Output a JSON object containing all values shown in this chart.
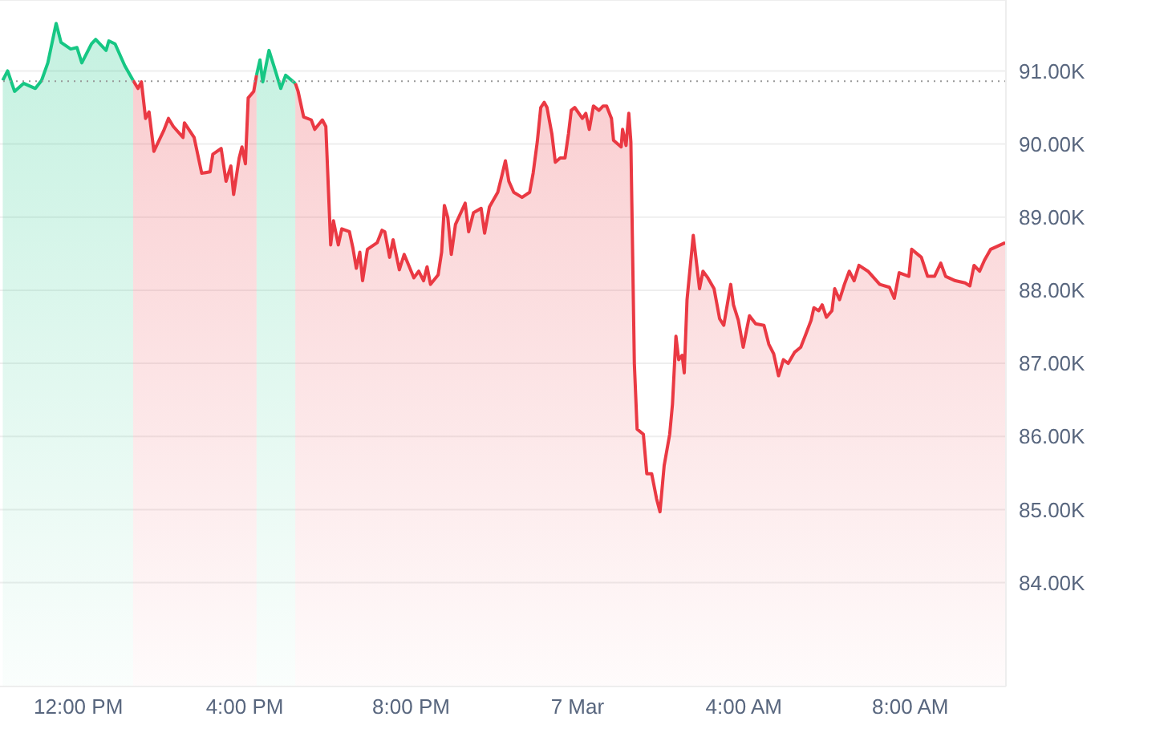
{
  "chart_data": {
    "type": "area",
    "x": [
      "--03-06T10:11",
      "--03-06T10:18",
      "--03-06T10:28",
      "--03-06T10:41",
      "--03-06T10:58",
      "--03-06T11:07",
      "--03-06T11:16",
      "--03-06T11:28",
      "--03-06T11:35",
      "--03-06T11:49",
      "--03-06T11:58",
      "--03-06T12:05",
      "--03-06T12:19",
      "--03-06T12:25",
      "--03-06T12:40",
      "--03-06T12:44",
      "--03-06T12:53",
      "--03-06T13:07",
      "--03-06T13:19",
      "--03-06T13:26",
      "--03-06T13:31",
      "--03-06T13:37",
      "--03-06T13:42",
      "--03-06T13:49",
      "--03-06T14:03",
      "--03-06T14:10",
      "--03-06T14:17",
      "--03-06T14:31",
      "--03-06T14:33",
      "--03-06T14:47",
      "--03-06T14:58",
      "--03-06T15:10",
      "--03-06T15:14",
      "--03-06T15:26",
      "--03-06T15:33",
      "--03-06T15:40",
      "--03-06T15:44",
      "--03-06T15:52",
      "--03-06T15:56",
      "--03-06T16:01",
      "--03-06T16:05",
      "--03-06T16:13",
      "--03-06T16:17",
      "--03-06T16:22",
      "--03-06T16:26",
      "--03-06T16:35",
      "--03-06T16:43",
      "--03-06T16:52",
      "--03-06T16:59",
      "--03-06T17:13",
      "--03-06T17:17",
      "--03-06T17:25",
      "--03-06T17:36",
      "--03-06T17:41",
      "--03-06T17:52",
      "--03-06T17:57",
      "--03-06T18:04",
      "--03-06T18:08",
      "--03-06T18:15",
      "--03-06T18:20",
      "--03-06T18:31",
      "--03-06T18:36",
      "--03-06T18:41",
      "--03-06T18:46",
      "--03-06T18:50",
      "--03-06T18:57",
      "--03-06T19:11",
      "--03-06T19:18",
      "--03-06T19:22",
      "--03-06T19:29",
      "--03-06T19:34",
      "--03-06T19:43",
      "--03-06T19:50",
      "--03-06T20:04",
      "--03-06T20:11",
      "--03-06T20:18",
      "--03-06T20:23",
      "--03-06T20:28",
      "--03-06T20:39",
      "--03-06T20:44",
      "--03-06T20:48",
      "--03-06T20:53",
      "--03-06T20:58",
      "--03-06T21:04",
      "--03-06T21:18",
      "--03-06T21:23",
      "--03-06T21:30",
      "--03-06T21:41",
      "--03-06T21:46",
      "--03-06T21:53",
      "--03-06T22:05",
      "--03-06T22:11",
      "--03-06T22:16",
      "--03-06T22:21",
      "--03-06T22:28",
      "--03-06T22:40",
      "--03-06T22:51",
      "--03-06T22:56",
      "--03-06T23:02",
      "--03-06T23:07",
      "--03-06T23:12",
      "--03-06T23:16",
      "--03-06T23:23",
      "--03-06T23:28",
      "--03-06T23:35",
      "--03-06T23:42",
      "--03-06T23:47",
      "--03-06T23:51",
      "--03-06T23:56",
      "--03-07T00:07",
      "--03-07T00:12",
      "--03-07T00:17",
      "--03-07T00:23",
      "--03-07T00:31",
      "--03-07T00:37",
      "--03-07T00:42",
      "--03-07T00:49",
      "--03-07T00:52",
      "--03-07T01:03",
      "--03-07T01:05",
      "--03-07T01:10",
      "--03-07T01:14",
      "--03-07T01:17",
      "--03-07T01:22",
      "--03-07T01:26",
      "--03-07T01:35",
      "--03-07T01:40",
      "--03-07T01:47",
      "--03-07T01:54",
      "--03-07T01:59",
      "--03-07T02:05",
      "--03-07T02:13",
      "--03-07T02:17",
      "--03-07T02:22",
      "--03-07T02:26",
      "--03-07T02:31",
      "--03-07T02:34",
      "--03-07T02:38",
      "--03-07T02:47",
      "--03-07T02:56",
      "--03-07T03:01",
      "--03-07T03:08",
      "--03-07T03:17",
      "--03-07T03:25",
      "--03-07T03:31",
      "--03-07T03:41",
      "--03-07T03:45",
      "--03-07T03:52",
      "--03-07T03:59",
      "--03-07T04:08",
      "--03-07T04:17",
      "--03-07T04:29",
      "--03-07T04:36",
      "--03-07T04:43",
      "--03-07T04:50",
      "--03-07T04:57",
      "--03-07T05:04",
      "--03-07T05:13",
      "--03-07T05:22",
      "--03-07T05:29",
      "--03-07T05:37",
      "--03-07T05:41",
      "--03-07T05:48",
      "--03-07T05:53",
      "--03-07T05:59",
      "--03-07T06:07",
      "--03-07T06:11",
      "--03-07T06:18",
      "--03-07T06:25",
      "--03-07T06:32",
      "--03-07T06:39",
      "--03-07T06:46",
      "--03-07T06:59",
      "--03-07T07:16",
      "--03-07T07:30",
      "--03-07T07:37",
      "--03-07T07:44",
      "--03-07T07:58",
      "--03-07T08:02",
      "--03-07T08:16",
      "--03-07T08:25",
      "--03-07T08:35",
      "--03-07T08:44",
      "--03-07T08:51",
      "--03-07T09:05",
      "--03-07T09:19",
      "--03-07T09:26",
      "--03-07T09:32",
      "--03-07T09:40",
      "--03-07T09:47",
      "--03-07T09:56",
      "--03-07T10:17"
    ],
    "series": [
      {
        "color": "#16c784",
        "values": [
          90870,
          91000,
          90720,
          90830,
          90760,
          90870,
          91110,
          91650,
          91390,
          91300,
          91320,
          91110,
          91370,
          91430,
          91280,
          91410,
          91370,
          91070,
          90870,
          null,
          null,
          null,
          null,
          null,
          null,
          null,
          null,
          null,
          null,
          null,
          null,
          null,
          null,
          null,
          null,
          null,
          null,
          null,
          null,
          null,
          null,
          null,
          90940,
          91150,
          90850,
          91280,
          91040,
          90760,
          90940,
          90830,
          null,
          null,
          null,
          null,
          null,
          null,
          null,
          null,
          null,
          null,
          null,
          null,
          null,
          null,
          null,
          null,
          null,
          null,
          null,
          null,
          null,
          null,
          null,
          null,
          null,
          null,
          null,
          null,
          null,
          null,
          null,
          null,
          null,
          null,
          null,
          null,
          null,
          null,
          null,
          null,
          null,
          null,
          null,
          null,
          null,
          null,
          null,
          null,
          null,
          null,
          null,
          null,
          null,
          null,
          null,
          null,
          null,
          null,
          null,
          null,
          null,
          null,
          null,
          null,
          null,
          null,
          null,
          null,
          null,
          null,
          null,
          null,
          null,
          null,
          null,
          null,
          null,
          null,
          null,
          null,
          null,
          null,
          null,
          null,
          null,
          null,
          null,
          null,
          null,
          null,
          null,
          null,
          null,
          null,
          null,
          null,
          null,
          null,
          null,
          null,
          null,
          null,
          null,
          null,
          null,
          null,
          null,
          null,
          null,
          null,
          null,
          null,
          null,
          null,
          null,
          null,
          null,
          null,
          null,
          null,
          null,
          null,
          null,
          null,
          null,
          null,
          null,
          null,
          null,
          null,
          null,
          null,
          null,
          null,
          null,
          null,
          null,
          null,
          null,
          null,
          null,
          null
        ]
      },
      {
        "color": "#ea3943",
        "values": [
          null,
          null,
          null,
          null,
          null,
          null,
          null,
          null,
          null,
          null,
          null,
          null,
          null,
          null,
          null,
          null,
          null,
          null,
          90870,
          90760,
          90850,
          90350,
          90440,
          89900,
          90180,
          90350,
          90240,
          90090,
          90290,
          90090,
          89600,
          89620,
          89860,
          89940,
          89490,
          89700,
          89310,
          89810,
          89960,
          89730,
          90630,
          90720,
          90940,
          null,
          null,
          null,
          null,
          null,
          null,
          90830,
          90720,
          90370,
          90330,
          90200,
          90330,
          90240,
          88620,
          88950,
          88620,
          88840,
          88800,
          88580,
          88300,
          88520,
          88130,
          88560,
          88650,
          88820,
          88800,
          88450,
          88690,
          88280,
          88490,
          88170,
          88260,
          88130,
          88320,
          88080,
          88210,
          88520,
          89160,
          88990,
          88490,
          88900,
          89190,
          88800,
          89060,
          89120,
          88780,
          89140,
          89340,
          89570,
          89770,
          89490,
          89340,
          89270,
          89340,
          89600,
          90030,
          90500,
          90570,
          90500,
          90140,
          89750,
          89810,
          89810,
          90140,
          90460,
          90500,
          90350,
          90420,
          90200,
          90520,
          90460,
          90520,
          90520,
          90350,
          90050,
          89960,
          90200,
          89980,
          90420,
          90030,
          87000,
          86100,
          86030,
          85490,
          85490,
          85150,
          84970,
          85600,
          86030,
          86440,
          87370,
          87050,
          87110,
          86870,
          87870,
          88750,
          88020,
          88260,
          88170,
          88020,
          87610,
          87520,
          88080,
          87800,
          87590,
          87220,
          87650,
          87540,
          87520,
          87260,
          87130,
          86830,
          87050,
          87000,
          87150,
          87220,
          87390,
          87590,
          87760,
          87720,
          87800,
          87630,
          87720,
          88020,
          87870,
          88080,
          88260,
          88130,
          88340,
          88260,
          88080,
          88040,
          87890,
          88240,
          88190,
          88560,
          88450,
          88190,
          88190,
          88370,
          88190,
          88130,
          88100,
          88060,
          88340,
          88260,
          88410,
          88560,
          88650
        ]
      }
    ],
    "xlim": [
      "--03-06T10:07",
      "--03-07T10:18"
    ],
    "xticks": [
      {
        "value": "--03-06T12:00",
        "label": "12:00 PM"
      },
      {
        "value": "--03-06T16:00",
        "label": "4:00 PM"
      },
      {
        "value": "--03-06T20:00",
        "label": "8:00 PM"
      },
      {
        "value": "--03-07T00:00",
        "label": "7 Mar"
      },
      {
        "value": "--03-07T04:00",
        "label": "4:00 AM"
      },
      {
        "value": "--03-07T08:00",
        "label": "8:00 AM"
      }
    ],
    "ylim": [
      82580,
      91970
    ],
    "yticks": [
      {
        "value": 84000,
        "label": "84.00K"
      },
      {
        "value": 85000,
        "label": "85.00K"
      },
      {
        "value": 86000,
        "label": "86.00K"
      },
      {
        "value": 87000,
        "label": "87.00K"
      },
      {
        "value": 88000,
        "label": "88.00K"
      },
      {
        "value": 89000,
        "label": "89.00K"
      },
      {
        "value": 90000,
        "label": "90.00K"
      },
      {
        "value": 91000,
        "label": "91.00K"
      }
    ],
    "ref_lines": [
      {
        "axis": "y",
        "value": 90860,
        "color": "#999999",
        "line_style": "dotted"
      }
    ],
    "grid": "y"
  }
}
